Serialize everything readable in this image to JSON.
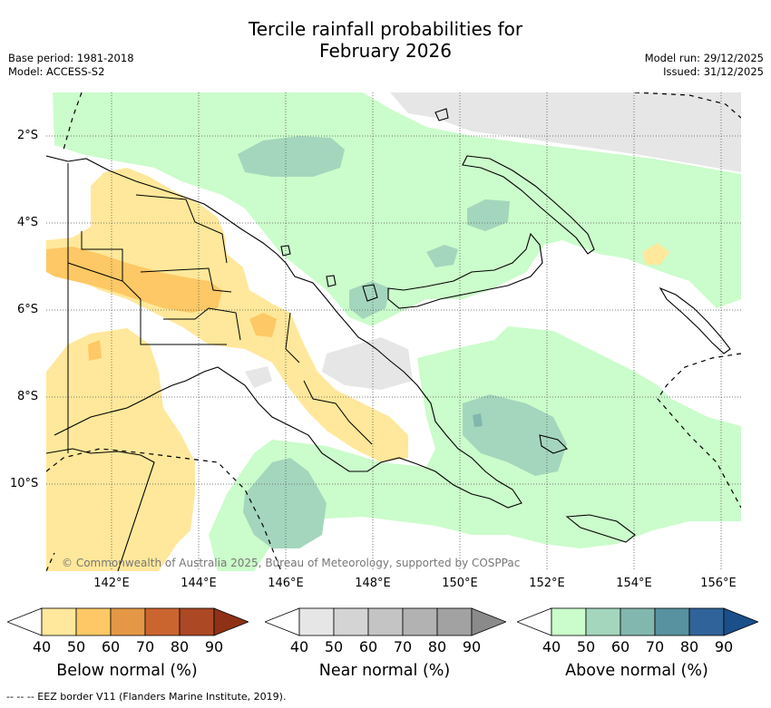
{
  "title_line1": "Tercile rainfall probabilities for",
  "title_line2": "February 2026",
  "meta_left": [
    "Base period: 1981-2018",
    "Model: ACCESS-S2"
  ],
  "meta_right": [
    "Model run: 29/12/2025",
    "Issued: 31/12/2025"
  ],
  "lat_labels": [
    "2°S",
    "4°S",
    "6°S",
    "8°S",
    "10°S"
  ],
  "lon_labels": [
    "142°E",
    "144°E",
    "146°E",
    "148°E",
    "150°E",
    "152°E",
    "154°E",
    "156°E"
  ],
  "copyright": "© Commonwealth of Australia 2025, Bureau of Meteorology, supported by COSPPac",
  "colorbars": [
    {
      "label": "Below normal (%)",
      "ticks": [
        "40",
        "50",
        "60",
        "70",
        "80",
        "90"
      ],
      "colors": [
        "#ffffff",
        "#ffe89b",
        "#fdc865",
        "#e49845",
        "#cb6530",
        "#ac4824",
        "#8e3116"
      ]
    },
    {
      "label": "Near normal (%)",
      "ticks": [
        "40",
        "50",
        "60",
        "70",
        "80",
        "90"
      ],
      "colors": [
        "#ffffff",
        "#e6e6e6",
        "#d4d4d4",
        "#c4c4c4",
        "#b2b2b2",
        "#a2a2a2",
        "#8a8a8a"
      ]
    },
    {
      "label": "Above normal (%)",
      "ticks": [
        "40",
        "50",
        "60",
        "70",
        "80",
        "90"
      ],
      "colors": [
        "#ffffff",
        "#cbfccb",
        "#a4d6bd",
        "#82b7af",
        "#5891a0",
        "#30639a",
        "#1a4f8a"
      ]
    }
  ],
  "footer": "-- -- -- EEZ border V11 (Flanders Marine Institute, 2019)."
}
